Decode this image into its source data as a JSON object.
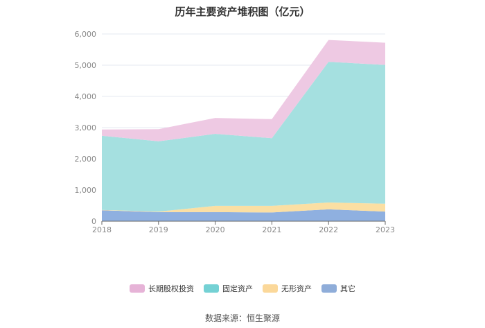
{
  "chart_data": {
    "type": "area",
    "stacked": true,
    "title": "历年主要资产堆积图（亿元）",
    "categories": [
      "2018",
      "2019",
      "2020",
      "2021",
      "2022",
      "2023"
    ],
    "ylim": [
      0,
      6000
    ],
    "yticks": [
      "0",
      "1,000",
      "2,000",
      "3,000",
      "4,000",
      "5,000",
      "6,000"
    ],
    "ytick_values": [
      0,
      1000,
      2000,
      3000,
      4000,
      5000,
      6000
    ],
    "grid": true,
    "legend_position": "bottom",
    "series": [
      {
        "name": "其它",
        "color": "#8fb0e0",
        "values": [
          350,
          290,
          290,
          280,
          380,
          310
        ]
      },
      {
        "name": "无形资产",
        "color": "#fbdfa3",
        "values": [
          10,
          20,
          200,
          210,
          220,
          250
        ]
      },
      {
        "name": "固定资产",
        "color": "#a5e0e0",
        "values": [
          2380,
          2250,
          2310,
          2170,
          4510,
          4450
        ]
      },
      {
        "name": "长期股权投资",
        "color": "#eec9e3",
        "values": [
          200,
          390,
          510,
          610,
          700,
          710
        ]
      }
    ],
    "legend_order": [
      "长期股权投资",
      "固定资产",
      "无形资产",
      "其它"
    ],
    "legend_colors": {
      "长期股权投资": "#e6b3d7",
      "固定资产": "#74d1d4",
      "无形资产": "#fbd89a",
      "其它": "#8fadd9"
    }
  },
  "source": "数据来源：恒生聚源"
}
